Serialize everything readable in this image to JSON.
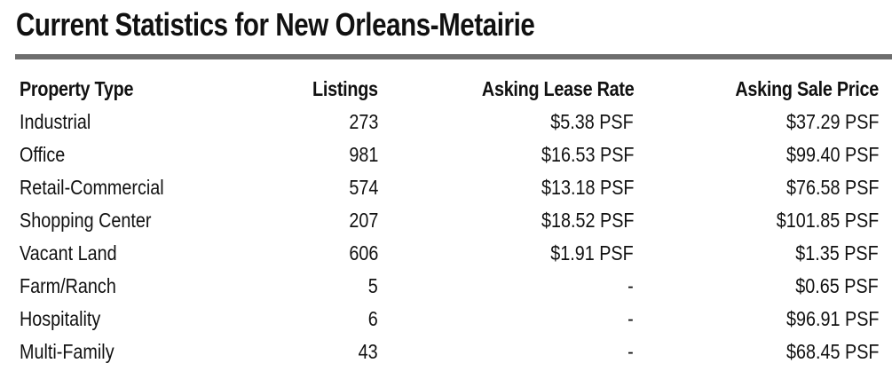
{
  "title": "Current Statistics for New Orleans-Metairie",
  "table": {
    "headers": {
      "property_type": "Property Type",
      "listings": "Listings",
      "asking_lease_rate": "Asking Lease Rate",
      "asking_sale_price": "Asking Sale Price"
    },
    "rows": [
      {
        "property_type": "Industrial",
        "listings": "273",
        "asking_lease_rate": "$5.38 PSF",
        "asking_sale_price": "$37.29 PSF"
      },
      {
        "property_type": "Office",
        "listings": "981",
        "asking_lease_rate": "$16.53 PSF",
        "asking_sale_price": "$99.40 PSF"
      },
      {
        "property_type": "Retail-Commercial",
        "listings": "574",
        "asking_lease_rate": "$13.18 PSF",
        "asking_sale_price": "$76.58 PSF"
      },
      {
        "property_type": "Shopping Center",
        "listings": "207",
        "asking_lease_rate": "$18.52 PSF",
        "asking_sale_price": "$101.85 PSF"
      },
      {
        "property_type": "Vacant Land",
        "listings": "606",
        "asking_lease_rate": "$1.91 PSF",
        "asking_sale_price": "$1.35 PSF"
      },
      {
        "property_type": "Farm/Ranch",
        "listings": "5",
        "asking_lease_rate": "-",
        "asking_sale_price": "$0.65 PSF"
      },
      {
        "property_type": "Hospitality",
        "listings": "6",
        "asking_lease_rate": "-",
        "asking_sale_price": "$96.91 PSF"
      },
      {
        "property_type": "Multi-Family",
        "listings": "43",
        "asking_lease_rate": "-",
        "asking_sale_price": "$68.45 PSF"
      }
    ]
  },
  "colors": {
    "text": "#111111",
    "rule": "#6e6e6e",
    "background": "#ffffff"
  }
}
